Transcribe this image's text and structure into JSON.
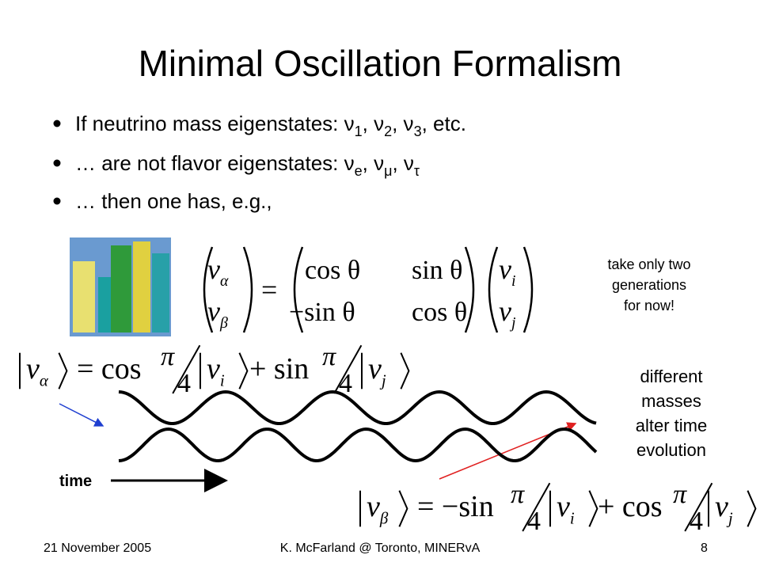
{
  "title": "Minimal Oscillation Formalism",
  "bullets": [
    [
      {
        "text": "If neutrino mass eigenstates:  ν"
      },
      {
        "sub": "1"
      },
      {
        "text": ", ν"
      },
      {
        "sub": "2"
      },
      {
        "text": ", ν"
      },
      {
        "sub": "3"
      },
      {
        "text": ", etc."
      }
    ],
    [
      {
        "text": "… are not flavor eigenstates:  ν"
      },
      {
        "sub": "e"
      },
      {
        "text": ", ν"
      },
      {
        "sub": "μ"
      },
      {
        "text": ", ν"
      },
      {
        "sub": "τ"
      }
    ],
    [
      {
        "text": "… then one has, e.g.,"
      }
    ]
  ],
  "equation_matrix": {
    "lhs": [
      {
        "symbol": "ν",
        "sub": "α"
      },
      {
        "symbol": "ν",
        "sub": "β"
      }
    ],
    "equals": "=",
    "matrix": [
      [
        "cos θ",
        "sin θ"
      ],
      [
        "−sin θ",
        "cos θ"
      ]
    ],
    "rhs": [
      {
        "symbol": "ν",
        "sub": "i"
      },
      {
        "symbol": "ν",
        "sub": "j"
      }
    ]
  },
  "note_generations": [
    "take only two",
    "generations",
    "for now!"
  ],
  "equation_alpha": {
    "ket": {
      "symbol": "ν",
      "sub": "α"
    },
    "equals": "= cos",
    "frac1": {
      "num": "π",
      "den": "4"
    },
    "ket1": {
      "symbol": "ν",
      "sub": "i"
    },
    "plus": "+ sin",
    "frac2": {
      "num": "π",
      "den": "4"
    },
    "ket2": {
      "symbol": "ν",
      "sub": "j"
    }
  },
  "note_masses": [
    "different",
    "masses",
    "alter time",
    "evolution"
  ],
  "time_label": "time",
  "equation_beta": {
    "ket": {
      "symbol": "ν",
      "sub": "β"
    },
    "equals": "= −sin",
    "frac1": {
      "num": "π",
      "den": "4"
    },
    "ket1": {
      "symbol": "ν",
      "sub": "i"
    },
    "plus": "+ cos",
    "frac2": {
      "num": "π",
      "den": "4"
    },
    "ket2": {
      "symbol": "ν",
      "sub": "j"
    }
  },
  "footer": {
    "date": "21 November 2005",
    "center": "K. McFarland @ Toronto, MINERvA",
    "page": "8"
  }
}
